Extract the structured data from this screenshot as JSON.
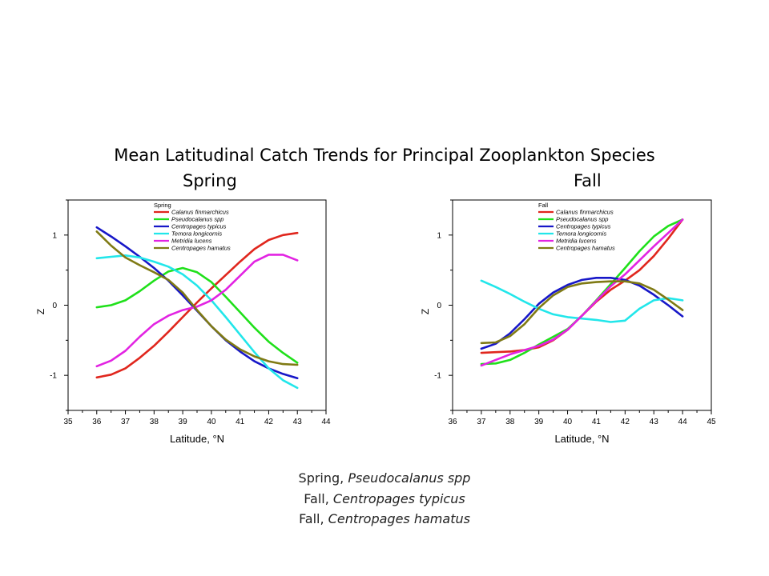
{
  "title": "Mean Latitudinal Catch Trends for Principal Zooplankton Species",
  "panel_titles": {
    "spring": "Spring",
    "fall": "Fall"
  },
  "captions": [
    {
      "prefix": "Spring, ",
      "species": "Pseudocalanus spp"
    },
    {
      "prefix": "Fall, ",
      "species": "Centropages typicus"
    },
    {
      "prefix": "Fall, ",
      "species": "Centropages hamatus"
    }
  ],
  "chart_data": [
    {
      "type": "line",
      "panel": "spring",
      "legend_title": "Spring",
      "legend_position": "top-left",
      "xlabel": "Latitude, °N",
      "ylabel": "Z",
      "xlim": [
        35,
        44
      ],
      "ylim": [
        -1.5,
        1.5
      ],
      "xticks": [
        35,
        36,
        37,
        38,
        39,
        40,
        41,
        42,
        43,
        44
      ],
      "yticks": [
        -1,
        0,
        1
      ],
      "grid": false,
      "series": [
        {
          "name": "Calanus finmarchicus",
          "color": "#e0261d",
          "x": [
            36,
            36.5,
            37,
            37.5,
            38,
            38.5,
            39,
            39.5,
            40,
            40.5,
            41,
            41.5,
            42,
            42.5,
            43
          ],
          "y": [
            -1.03,
            -0.99,
            -0.9,
            -0.75,
            -0.58,
            -0.38,
            -0.17,
            0.04,
            0.24,
            0.43,
            0.62,
            0.8,
            0.93,
            1.0,
            1.03
          ]
        },
        {
          "name": "Pseudocalanus spp",
          "color": "#1fe01a",
          "x": [
            36,
            36.5,
            37,
            37.5,
            38,
            38.5,
            39,
            39.5,
            40,
            40.5,
            41,
            41.5,
            42,
            42.5,
            43
          ],
          "y": [
            -0.03,
            0.0,
            0.07,
            0.2,
            0.35,
            0.48,
            0.53,
            0.47,
            0.33,
            0.12,
            -0.1,
            -0.32,
            -0.52,
            -0.68,
            -0.82
          ]
        },
        {
          "name": "Centropages typicus",
          "color": "#1717c8",
          "x": [
            36,
            36.5,
            37,
            37.5,
            38,
            38.5,
            39,
            39.5,
            40,
            40.5,
            41,
            41.5,
            42,
            42.5,
            43
          ],
          "y": [
            1.11,
            0.98,
            0.84,
            0.69,
            0.53,
            0.35,
            0.14,
            -0.08,
            -0.3,
            -0.5,
            -0.66,
            -0.8,
            -0.9,
            -0.98,
            -1.04
          ]
        },
        {
          "name": "Temora longicornis",
          "color": "#22e6ea",
          "x": [
            36,
            36.5,
            37,
            37.5,
            38,
            38.5,
            39,
            39.5,
            40,
            40.5,
            41,
            41.5,
            42,
            42.5,
            43
          ],
          "y": [
            0.67,
            0.69,
            0.71,
            0.68,
            0.62,
            0.55,
            0.44,
            0.28,
            0.07,
            -0.17,
            -0.42,
            -0.67,
            -0.9,
            -1.07,
            -1.18
          ]
        },
        {
          "name": "Metridia lucens",
          "color": "#e223e2",
          "x": [
            36,
            36.5,
            37,
            37.5,
            38,
            38.5,
            39,
            39.5,
            40,
            40.5,
            41,
            41.5,
            42,
            42.5,
            43
          ],
          "y": [
            -0.87,
            -0.79,
            -0.65,
            -0.45,
            -0.27,
            -0.15,
            -0.07,
            -0.02,
            0.07,
            0.22,
            0.42,
            0.62,
            0.72,
            0.72,
            0.64
          ]
        },
        {
          "name": "Centropages hamatus",
          "color": "#7f7a14",
          "x": [
            36,
            36.5,
            37,
            37.5,
            38,
            38.5,
            39,
            39.5,
            40,
            40.5,
            41,
            41.5,
            42,
            42.5,
            43
          ],
          "y": [
            1.05,
            0.85,
            0.68,
            0.57,
            0.47,
            0.36,
            0.18,
            -0.07,
            -0.3,
            -0.49,
            -0.63,
            -0.73,
            -0.8,
            -0.84,
            -0.85
          ]
        }
      ]
    },
    {
      "type": "line",
      "panel": "fall",
      "legend_title": "Fall",
      "legend_position": "top-left",
      "xlabel": "Latitude, °N",
      "ylabel": "Z",
      "xlim": [
        36,
        45
      ],
      "ylim": [
        -1.5,
        1.5
      ],
      "xticks": [
        36,
        37,
        38,
        39,
        40,
        41,
        42,
        43,
        44,
        45
      ],
      "yticks": [
        -1,
        0,
        1
      ],
      "grid": false,
      "series": [
        {
          "name": "Calanus finmarchicus",
          "color": "#e0261d",
          "x": [
            37,
            37.5,
            38,
            38.5,
            39,
            39.5,
            40,
            40.5,
            41,
            41.5,
            42,
            42.5,
            43,
            43.5,
            44
          ],
          "y": [
            -0.68,
            -0.67,
            -0.66,
            -0.64,
            -0.6,
            -0.5,
            -0.35,
            -0.15,
            0.05,
            0.22,
            0.35,
            0.5,
            0.7,
            0.95,
            1.22
          ]
        },
        {
          "name": "Pseudocalanus spp",
          "color": "#1fe01a",
          "x": [
            37,
            37.5,
            38,
            38.5,
            39,
            39.5,
            40,
            40.5,
            41,
            41.5,
            42,
            42.5,
            43,
            43.5,
            44
          ],
          "y": [
            -0.84,
            -0.83,
            -0.78,
            -0.68,
            -0.56,
            -0.45,
            -0.34,
            -0.15,
            0.07,
            0.3,
            0.53,
            0.77,
            0.98,
            1.13,
            1.22
          ]
        },
        {
          "name": "Centropages typicus",
          "color": "#1717c8",
          "x": [
            37,
            37.5,
            38,
            38.5,
            39,
            39.5,
            40,
            40.5,
            41,
            41.5,
            42,
            42.5,
            43,
            43.5,
            44
          ],
          "y": [
            -0.62,
            -0.55,
            -0.4,
            -0.2,
            0.02,
            0.18,
            0.29,
            0.36,
            0.39,
            0.39,
            0.36,
            0.28,
            0.15,
            0.0,
            -0.16
          ]
        },
        {
          "name": "Temora longicornis",
          "color": "#22e6ea",
          "x": [
            37,
            37.5,
            38,
            38.5,
            39,
            39.5,
            40,
            40.5,
            41,
            41.5,
            42,
            42.5,
            43,
            43.5,
            44
          ],
          "y": [
            0.35,
            0.26,
            0.16,
            0.05,
            -0.05,
            -0.13,
            -0.17,
            -0.19,
            -0.21,
            -0.24,
            -0.22,
            -0.05,
            0.07,
            0.1,
            0.07
          ]
        },
        {
          "name": "Metridia lucens",
          "color": "#e223e2",
          "x": [
            37,
            37.5,
            38,
            38.5,
            39,
            39.5,
            40,
            40.5,
            41,
            41.5,
            42,
            42.5,
            43,
            43.5,
            44
          ],
          "y": [
            -0.86,
            -0.78,
            -0.7,
            -0.64,
            -0.58,
            -0.49,
            -0.35,
            -0.15,
            0.06,
            0.27,
            0.44,
            0.64,
            0.84,
            1.03,
            1.22
          ]
        },
        {
          "name": "Centropages hamatus",
          "color": "#7f7a14",
          "x": [
            37,
            37.5,
            38,
            38.5,
            39,
            39.5,
            40,
            40.5,
            41,
            41.5,
            42,
            42.5,
            43,
            43.5,
            44
          ],
          "y": [
            -0.54,
            -0.53,
            -0.44,
            -0.27,
            -0.04,
            0.14,
            0.26,
            0.31,
            0.33,
            0.34,
            0.34,
            0.31,
            0.22,
            0.08,
            -0.07
          ]
        }
      ]
    }
  ]
}
